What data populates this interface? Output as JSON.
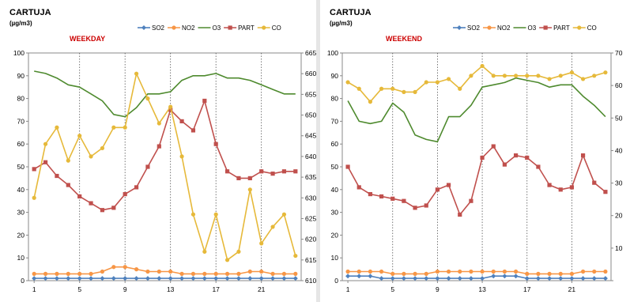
{
  "chart_data": [
    {
      "type": "line",
      "title": "CARTUJA",
      "unit": "(µg/m3)",
      "subtitle": "WEEKDAY",
      "x": [
        1,
        2,
        3,
        4,
        5,
        6,
        7,
        8,
        9,
        10,
        11,
        12,
        13,
        14,
        15,
        16,
        17,
        18,
        19,
        20,
        21,
        22,
        23,
        24
      ],
      "x_ticks": [
        1,
        5,
        9,
        13,
        17,
        21
      ],
      "vertical_grid_at": [
        5,
        9,
        13,
        17,
        21
      ],
      "ylim": [
        0,
        100
      ],
      "y_ticks": [
        0,
        10,
        20,
        30,
        40,
        50,
        60,
        70,
        80,
        90,
        100
      ],
      "y2lim": [
        610,
        665
      ],
      "y2_ticks": [
        610,
        615,
        620,
        625,
        630,
        635,
        640,
        645,
        650,
        655,
        660,
        665
      ],
      "legend_position": "top",
      "series": [
        {
          "name": "SO2",
          "axis": "left",
          "color": "#4f81bd",
          "marker": "diamond",
          "values": [
            1,
            1,
            1,
            1,
            1,
            1,
            1,
            1,
            1,
            1,
            1,
            1,
            1,
            1,
            1,
            1,
            1,
            1,
            1,
            1,
            1,
            1,
            1,
            1
          ]
        },
        {
          "name": "NO2",
          "axis": "left",
          "color": "#f79646",
          "marker": "circle",
          "values": [
            3,
            3,
            3,
            3,
            3,
            3,
            4,
            6,
            6,
            5,
            4,
            4,
            4,
            3,
            3,
            3,
            3,
            3,
            3,
            4,
            4,
            3,
            3,
            3
          ]
        },
        {
          "name": "O3",
          "axis": "left",
          "color": "#4e8a2e",
          "marker": "none",
          "values": [
            92,
            91,
            89,
            86,
            85,
            82,
            79,
            73,
            72,
            76,
            82,
            82,
            83,
            88,
            90,
            90,
            91,
            89,
            89,
            88,
            86,
            84,
            82,
            82
          ]
        },
        {
          "name": "PART",
          "axis": "left",
          "color": "#c0504d",
          "marker": "square",
          "values": [
            49,
            52,
            46,
            42,
            37,
            34,
            31,
            32,
            38,
            41,
            50,
            59,
            75,
            70,
            66,
            79,
            60,
            48,
            45,
            45,
            48,
            47,
            48,
            48
          ]
        },
        {
          "name": "CO",
          "axis": "right",
          "color": "#e6b93a",
          "marker": "circle",
          "values": [
            630,
            643,
            647,
            639,
            645,
            640,
            642,
            647,
            647,
            660,
            654,
            648,
            652,
            640,
            626,
            617,
            626,
            615,
            617,
            632,
            619,
            623,
            626,
            616
          ]
        }
      ]
    },
    {
      "type": "line",
      "title": "CARTUJA",
      "unit": "(µg/m3)",
      "subtitle": "WEEKEND",
      "x": [
        1,
        2,
        3,
        4,
        5,
        6,
        7,
        8,
        9,
        10,
        11,
        12,
        13,
        14,
        15,
        16,
        17,
        18,
        19,
        20,
        21,
        22,
        23,
        24
      ],
      "x_ticks": [
        1,
        5,
        9,
        13,
        17,
        21
      ],
      "vertical_grid_at": [
        5,
        9,
        13,
        17,
        21
      ],
      "ylim": [
        0,
        100
      ],
      "y_ticks": [
        0,
        10,
        20,
        30,
        40,
        50,
        60,
        70,
        80,
        90,
        100
      ],
      "y2lim": [
        0,
        70
      ],
      "y2_ticks": [
        0,
        10,
        20,
        30,
        40,
        50,
        60,
        70
      ],
      "y2_tick_labels_visible": [
        "10",
        "20",
        "30",
        "40",
        "50",
        "60",
        "70"
      ],
      "legend_position": "top",
      "series": [
        {
          "name": "SO2",
          "axis": "left",
          "color": "#4f81bd",
          "marker": "diamond",
          "values": [
            2,
            2,
            2,
            1,
            1,
            1,
            1,
            1,
            1,
            1,
            1,
            1,
            1,
            2,
            2,
            2,
            1,
            1,
            1,
            1,
            1,
            1,
            1,
            1
          ]
        },
        {
          "name": "NO2",
          "axis": "left",
          "color": "#f79646",
          "marker": "circle",
          "values": [
            4,
            4,
            4,
            4,
            3,
            3,
            3,
            3,
            4,
            4,
            4,
            4,
            4,
            4,
            4,
            4,
            3,
            3,
            3,
            3,
            3,
            4,
            4,
            4
          ]
        },
        {
          "name": "O3",
          "axis": "left",
          "color": "#4e8a2e",
          "marker": "none",
          "values": [
            79,
            70,
            69,
            70,
            78,
            74,
            64,
            62,
            61,
            72,
            72,
            77,
            85,
            86,
            87,
            89,
            88,
            87,
            85,
            86,
            86,
            81,
            77,
            72
          ]
        },
        {
          "name": "PART",
          "axis": "left",
          "color": "#c0504d",
          "marker": "square",
          "values": [
            50,
            41,
            38,
            37,
            36,
            35,
            32,
            33,
            40,
            42,
            29,
            35,
            54,
            59,
            51,
            55,
            54,
            50,
            42,
            40,
            41,
            55,
            43,
            39
          ]
        },
        {
          "name": "CO",
          "axis": "right",
          "color": "#e6b93a",
          "marker": "circle",
          "values": [
            61,
            59,
            55,
            59,
            59,
            58,
            58,
            61,
            61,
            62,
            59,
            63,
            66,
            63,
            63,
            63,
            63,
            63,
            62,
            63,
            64,
            62,
            63,
            64
          ]
        }
      ]
    }
  ]
}
